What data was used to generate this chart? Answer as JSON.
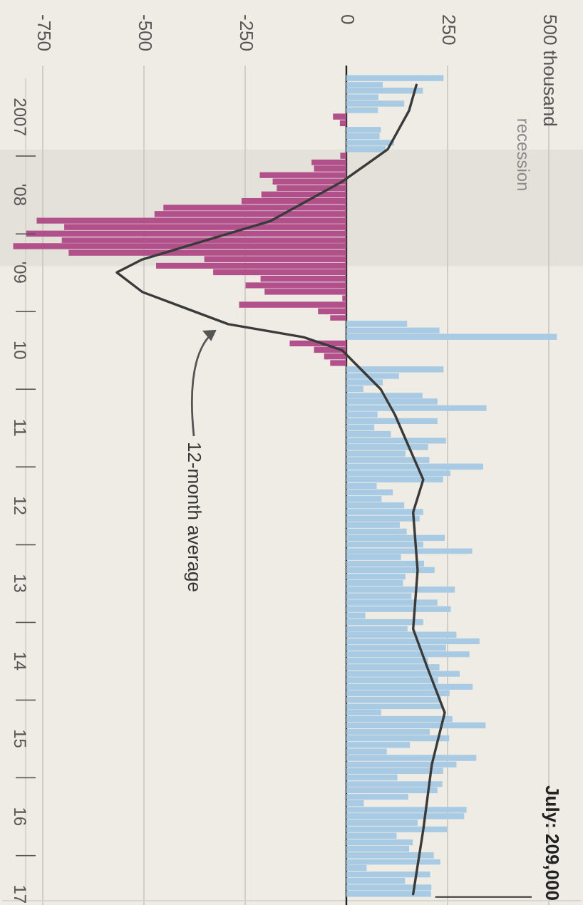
{
  "chart_data": {
    "type": "bar",
    "orientation": "horizontal",
    "xlim": [
      -850,
      580
    ],
    "ylim": [
      "2017-08",
      "2007-01"
    ],
    "xticks": [
      -750,
      -500,
      -250,
      0,
      250,
      {
        "value": 500,
        "label": "500 thousand"
      }
    ],
    "yticks": [
      {
        "value": "2007-07",
        "label": "2007"
      },
      {
        "value": "2008-01",
        "label": null
      },
      {
        "value": "2008-07",
        "label": "'08"
      },
      {
        "value": "2009-01",
        "label": null
      },
      {
        "value": "2009-07",
        "label": "'09"
      },
      {
        "value": "2010-01",
        "label": null
      },
      {
        "value": "2010-07",
        "label": "10"
      },
      {
        "value": "2011-01",
        "label": null
      },
      {
        "value": "2011-07",
        "label": "11"
      },
      {
        "value": "2012-01",
        "label": null
      },
      {
        "value": "2012-07",
        "label": "12"
      },
      {
        "value": "2013-01",
        "label": null
      },
      {
        "value": "2013-07",
        "label": "13"
      },
      {
        "value": "2014-01",
        "label": null
      },
      {
        "value": "2014-07",
        "label": "14"
      },
      {
        "value": "2015-01",
        "label": null
      },
      {
        "value": "2015-07",
        "label": "15"
      },
      {
        "value": "2016-01",
        "label": null
      },
      {
        "value": "2016-07",
        "label": "16"
      },
      {
        "value": "2017-01",
        "label": null
      },
      {
        "value": "2017-07",
        "label": "17"
      }
    ],
    "grid": "x",
    "marker": "none",
    "ref_lines": [
      {
        "axis": "x",
        "value": 0,
        "color": "#222222"
      }
    ],
    "line_style": "solid",
    "bands": [
      {
        "axis": "y",
        "from": "2007-12",
        "to": "2009-06",
        "label": "recession",
        "color": "#e4e1da"
      }
    ],
    "annotations": [
      "12-month average",
      {
        "text": "July: 209,000",
        "x": 209,
        "y": "2017-07"
      }
    ],
    "series": [
      {
        "color": "#a8cbe3",
        "x": [
          "2007-01",
          "2007-02",
          "2007-03",
          "2007-04",
          "2007-05",
          "2007-06",
          "2007-09",
          "2007-10",
          "2007-11",
          "2007-12",
          "2010-03",
          "2010-04",
          "2010-05",
          "2010-10",
          "2010-11",
          "2010-12",
          "2011-01",
          "2011-02",
          "2011-03",
          "2011-04",
          "2011-05",
          "2011-06",
          "2011-07",
          "2011-08",
          "2011-09",
          "2011-10",
          "2011-11",
          "2011-12",
          "2012-01",
          "2012-02",
          "2012-03",
          "2012-04",
          "2012-05",
          "2012-06",
          "2012-07",
          "2012-08",
          "2012-09",
          "2012-10",
          "2012-11",
          "2012-12",
          "2013-01",
          "2013-02",
          "2013-03",
          "2013-04",
          "2013-05",
          "2013-06",
          "2013-07",
          "2013-08",
          "2013-09",
          "2013-10",
          "2013-11",
          "2013-12",
          "2014-01",
          "2014-02",
          "2014-03",
          "2014-04",
          "2014-05",
          "2014-06",
          "2014-07",
          "2014-08",
          "2014-09",
          "2014-10",
          "2014-11",
          "2014-12",
          "2015-01",
          "2015-02",
          "2015-03",
          "2015-04",
          "2015-05",
          "2015-06",
          "2015-07",
          "2015-08",
          "2015-09",
          "2015-10",
          "2015-11",
          "2015-12",
          "2016-01",
          "2016-02",
          "2016-03",
          "2016-04",
          "2016-05",
          "2016-06",
          "2016-07",
          "2016-08",
          "2016-09",
          "2016-10",
          "2016-11",
          "2016-12",
          "2017-01",
          "2017-02",
          "2017-03",
          "2017-04",
          "2017-05",
          "2017-06",
          "2017-07"
        ],
        "values": [
          240,
          90,
          189,
          79,
          143,
          78,
          85,
          82,
          118,
          97,
          150,
          230,
          520,
          240,
          130,
          90,
          42,
          188,
          225,
          346,
          77,
          225,
          69,
          110,
          246,
          202,
          146,
          205,
          338,
          257,
          239,
          75,
          115,
          87,
          143,
          190,
          181,
          132,
          149,
          243,
          190,
          311,
          135,
          192,
          218,
          146,
          140,
          268,
          161,
          225,
          258,
          47,
          190,
          151,
          272,
          329,
          246,
          304,
          202,
          230,
          280,
          227,
          312,
          255,
          234,
          238,
          86,
          262,
          344,
          206,
          254,
          157,
          100,
          321,
          272,
          239,
          126,
          237,
          225,
          153,
          43,
          297,
          291,
          176,
          249,
          124,
          164,
          155,
          216,
          232,
          50,
          207,
          145,
          210,
          209
        ]
      },
      {
        "color": "#b1508a",
        "x": [
          "2007-07",
          "2007-08",
          "2008-01",
          "2008-02",
          "2008-03",
          "2008-04",
          "2008-05",
          "2008-06",
          "2008-07",
          "2008-08",
          "2008-09",
          "2008-10",
          "2008-11",
          "2008-12",
          "2009-01",
          "2009-02",
          "2009-03",
          "2009-04",
          "2009-05",
          "2009-06",
          "2009-07",
          "2009-08",
          "2009-09",
          "2009-10",
          "2009-11",
          "2009-12",
          "2010-01",
          "2010-02",
          "2010-06",
          "2010-07",
          "2010-08",
          "2010-09"
        ],
        "values": [
          -33,
          -16,
          -15,
          -86,
          -80,
          -214,
          -182,
          -172,
          -210,
          -259,
          -452,
          -474,
          -765,
          -697,
          -791,
          -703,
          -823,
          -686,
          -351,
          -470,
          -329,
          -212,
          -249,
          -202,
          -10,
          -265,
          -70,
          -40,
          -140,
          -80,
          -55,
          -40
        ]
      },
      {
        "type": "line",
        "color": "#3a3a3a",
        "x": [
          "2007-02",
          "2007-06",
          "2007-12",
          "2008-05",
          "2008-11",
          "2009-05",
          "2009-07",
          "2009-10",
          "2010-03",
          "2010-05",
          "2010-07",
          "2011-01",
          "2011-05",
          "2011-10",
          "2012-03",
          "2012-08",
          "2013-05",
          "2014-02",
          "2014-08",
          "2015-03",
          "2015-11",
          "2016-09",
          "2017-07"
        ],
        "values": [
          173,
          155,
          102,
          -11,
          -187,
          -504,
          -567,
          -504,
          -292,
          -106,
          -11,
          85,
          120,
          155,
          190,
          165,
          176,
          165,
          200,
          243,
          211,
          190,
          165
        ]
      }
    ]
  }
}
